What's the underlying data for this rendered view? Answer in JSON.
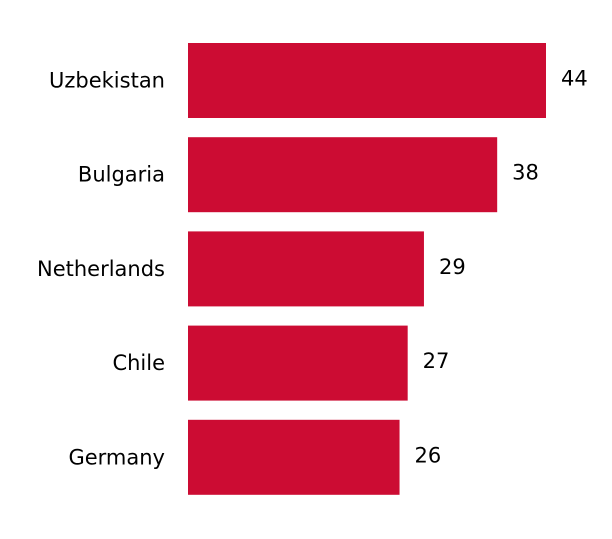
{
  "chart_data": {
    "type": "bar",
    "orientation": "horizontal",
    "categories": [
      "Uzbekistan",
      "Bulgaria",
      "Netherlands",
      "Chile",
      "Germany"
    ],
    "values": [
      44,
      38,
      29,
      27,
      26
    ],
    "color": "#cc0c33"
  }
}
